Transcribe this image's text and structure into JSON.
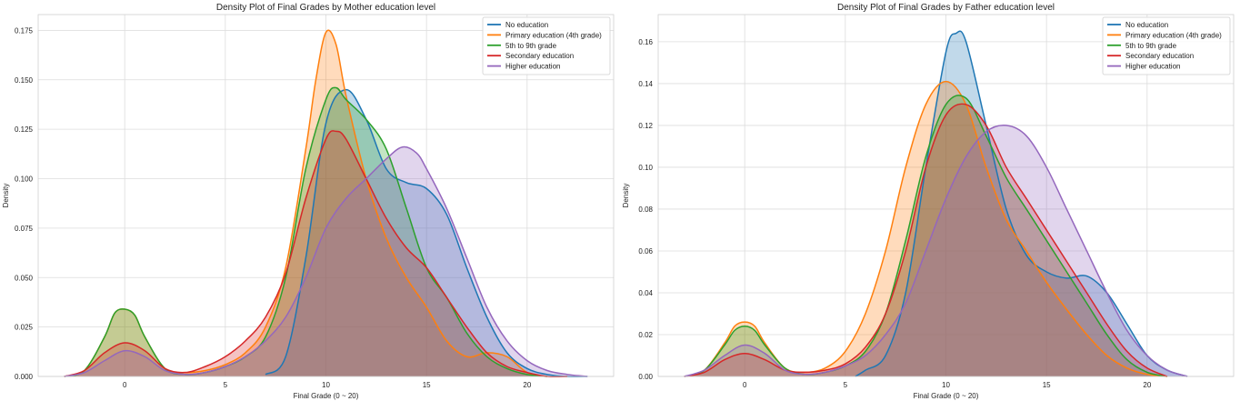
{
  "chart_data": [
    {
      "type": "area",
      "title": "Density Plot of Final Grades by Mother education level",
      "xlabel": "Final Grade (0 ~ 20)",
      "ylabel": "Density",
      "xlim": [
        -4.3,
        24.3
      ],
      "ylim": [
        0,
        0.183
      ],
      "xticks": [
        0,
        5,
        10,
        15,
        20
      ],
      "yticks": [
        0.0,
        0.025,
        0.05,
        0.075,
        0.1,
        0.125,
        0.15,
        0.175
      ],
      "ytick_labels": [
        "0.000",
        "0.025",
        "0.050",
        "0.075",
        "0.100",
        "0.125",
        "0.150",
        "0.175"
      ],
      "grid": true,
      "legend_position": "top-right",
      "series": [
        {
          "name": "No education",
          "color": "#1f77b4",
          "x": [
            7,
            8,
            9,
            10,
            11,
            12,
            13,
            14,
            15,
            16,
            17,
            18,
            19,
            20,
            21,
            22,
            23
          ],
          "y": [
            0.001,
            0.01,
            0.06,
            0.128,
            0.145,
            0.13,
            0.105,
            0.098,
            0.095,
            0.082,
            0.055,
            0.03,
            0.012,
            0.004,
            0.001,
            0.0,
            0.0
          ]
        },
        {
          "name": "Primary education (4th grade)",
          "color": "#ff7f0e",
          "x": [
            -3,
            -2,
            -1,
            -0.5,
            0,
            0.5,
            1,
            2,
            3,
            4,
            5,
            6,
            7,
            8,
            9,
            9.5,
            10,
            10.5,
            11,
            12,
            13,
            14,
            15,
            16,
            17,
            18,
            19,
            20,
            21
          ],
          "y": [
            0.0,
            0.003,
            0.02,
            0.032,
            0.034,
            0.031,
            0.02,
            0.004,
            0.002,
            0.003,
            0.006,
            0.012,
            0.025,
            0.055,
            0.115,
            0.15,
            0.174,
            0.168,
            0.142,
            0.1,
            0.07,
            0.05,
            0.035,
            0.018,
            0.01,
            0.012,
            0.01,
            0.002,
            0.0
          ]
        },
        {
          "name": "5th to 9th grade",
          "color": "#2ca02c",
          "x": [
            -3,
            -2,
            -1,
            -0.5,
            0,
            0.5,
            1,
            2,
            3,
            4,
            5,
            6,
            7,
            8,
            9,
            10,
            10.5,
            11,
            12,
            13,
            14,
            15,
            16,
            17,
            18,
            19,
            20,
            21
          ],
          "y": [
            0.0,
            0.003,
            0.02,
            0.032,
            0.034,
            0.031,
            0.02,
            0.004,
            0.001,
            0.002,
            0.005,
            0.01,
            0.02,
            0.05,
            0.105,
            0.14,
            0.146,
            0.14,
            0.13,
            0.115,
            0.085,
            0.055,
            0.04,
            0.022,
            0.01,
            0.004,
            0.001,
            0.0
          ]
        },
        {
          "name": "Secondary education",
          "color": "#d62728",
          "x": [
            -3,
            -2,
            -1,
            0,
            1,
            2,
            3,
            4,
            5,
            6,
            7,
            8,
            9,
            10,
            10.5,
            11,
            12,
            13,
            14,
            15,
            16,
            17,
            18,
            19,
            20,
            21,
            22
          ],
          "y": [
            0.0,
            0.003,
            0.012,
            0.017,
            0.013,
            0.004,
            0.002,
            0.005,
            0.01,
            0.018,
            0.03,
            0.052,
            0.09,
            0.12,
            0.124,
            0.12,
            0.1,
            0.08,
            0.065,
            0.055,
            0.04,
            0.025,
            0.012,
            0.005,
            0.002,
            0.0,
            0.0
          ]
        },
        {
          "name": "Higher education",
          "color": "#9467bd",
          "x": [
            -3,
            -2,
            -1,
            0,
            1,
            2,
            3,
            4,
            5,
            6,
            7,
            8,
            9,
            10,
            11,
            12,
            13,
            13.8,
            14.5,
            15,
            16,
            17,
            18,
            19,
            20,
            21,
            22,
            23
          ],
          "y": [
            0.0,
            0.002,
            0.008,
            0.013,
            0.01,
            0.003,
            0.001,
            0.002,
            0.005,
            0.01,
            0.018,
            0.03,
            0.05,
            0.075,
            0.09,
            0.1,
            0.11,
            0.116,
            0.113,
            0.105,
            0.085,
            0.06,
            0.035,
            0.018,
            0.008,
            0.003,
            0.001,
            0.0
          ]
        }
      ]
    },
    {
      "type": "area",
      "title": "Density Plot of Final Grades by Father education level",
      "xlabel": "Final Grade (0 ~ 20)",
      "ylabel": "Density",
      "xlim": [
        -4.3,
        24.3
      ],
      "ylim": [
        0,
        0.173
      ],
      "xticks": [
        0,
        5,
        10,
        15,
        20
      ],
      "yticks": [
        0.0,
        0.02,
        0.04,
        0.06,
        0.08,
        0.1,
        0.12,
        0.14,
        0.16
      ],
      "ytick_labels": [
        "0.00",
        "0.02",
        "0.04",
        "0.06",
        "0.08",
        "0.10",
        "0.12",
        "0.14",
        "0.16"
      ],
      "grid": true,
      "legend_position": "top-right",
      "series": [
        {
          "name": "No education",
          "color": "#1f77b4",
          "x": [
            5.5,
            6,
            7,
            8,
            9,
            10,
            10.5,
            11,
            12,
            13,
            14,
            15,
            16,
            17,
            18,
            19,
            20,
            21,
            22
          ],
          "y": [
            0.0,
            0.003,
            0.01,
            0.04,
            0.1,
            0.155,
            0.164,
            0.16,
            0.12,
            0.08,
            0.058,
            0.05,
            0.047,
            0.048,
            0.04,
            0.025,
            0.01,
            0.003,
            0.0
          ]
        },
        {
          "name": "Primary education (4th grade)",
          "color": "#ff7f0e",
          "x": [
            -3,
            -2,
            -1,
            -0.5,
            0,
            0.5,
            1,
            2,
            3,
            4,
            5,
            6,
            7,
            8,
            9,
            10,
            11,
            12,
            13,
            14,
            15,
            16,
            17,
            18,
            19,
            20,
            21
          ],
          "y": [
            0.0,
            0.003,
            0.016,
            0.024,
            0.026,
            0.024,
            0.016,
            0.004,
            0.002,
            0.004,
            0.012,
            0.03,
            0.06,
            0.1,
            0.13,
            0.141,
            0.13,
            0.1,
            0.075,
            0.06,
            0.045,
            0.032,
            0.02,
            0.01,
            0.004,
            0.001,
            0.0
          ]
        },
        {
          "name": "5th to 9th grade",
          "color": "#2ca02c",
          "x": [
            -3,
            -2,
            -1,
            -0.5,
            0,
            0.5,
            1,
            2,
            3,
            4,
            5,
            6,
            7,
            8,
            9,
            10,
            11,
            12,
            13,
            14,
            15,
            16,
            17,
            18,
            19,
            20,
            21
          ],
          "y": [
            0.0,
            0.003,
            0.015,
            0.022,
            0.024,
            0.022,
            0.015,
            0.004,
            0.001,
            0.002,
            0.005,
            0.012,
            0.03,
            0.065,
            0.105,
            0.13,
            0.133,
            0.115,
            0.095,
            0.08,
            0.065,
            0.05,
            0.035,
            0.02,
            0.008,
            0.002,
            0.0
          ]
        },
        {
          "name": "Secondary education",
          "color": "#d62728",
          "x": [
            -3,
            -2,
            -1,
            0,
            1,
            2,
            3,
            4,
            5,
            6,
            7,
            8,
            9,
            10,
            11,
            12,
            13,
            14,
            15,
            16,
            17,
            18,
            19,
            20,
            21
          ],
          "y": [
            0.0,
            0.002,
            0.008,
            0.011,
            0.008,
            0.003,
            0.002,
            0.003,
            0.006,
            0.014,
            0.03,
            0.06,
            0.1,
            0.125,
            0.13,
            0.12,
            0.1,
            0.085,
            0.07,
            0.055,
            0.04,
            0.025,
            0.012,
            0.004,
            0.0
          ]
        },
        {
          "name": "Higher education",
          "color": "#9467bd",
          "x": [
            -3,
            -2,
            -1,
            0,
            1,
            2,
            3,
            4,
            5,
            6,
            7,
            8,
            9,
            10,
            11,
            12,
            13,
            14,
            15,
            16,
            17,
            18,
            19,
            20,
            21,
            22
          ],
          "y": [
            0.0,
            0.003,
            0.01,
            0.015,
            0.011,
            0.003,
            0.001,
            0.002,
            0.005,
            0.01,
            0.02,
            0.035,
            0.06,
            0.085,
            0.105,
            0.117,
            0.12,
            0.115,
            0.1,
            0.08,
            0.06,
            0.04,
            0.022,
            0.01,
            0.003,
            0.0
          ]
        }
      ]
    }
  ]
}
